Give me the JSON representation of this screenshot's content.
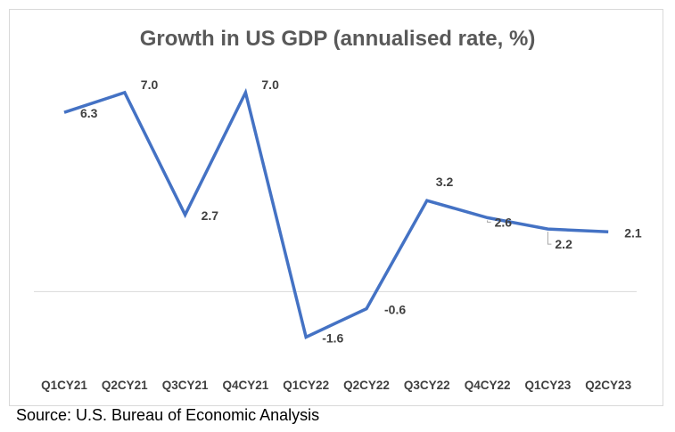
{
  "chart_data": {
    "type": "line",
    "title": "Growth in US GDP (annualised rate, %)",
    "categories": [
      "Q1CY21",
      "Q2CY21",
      "Q3CY21",
      "Q4CY21",
      "Q1CY22",
      "Q2CY22",
      "Q3CY22",
      "Q4CY22",
      "Q1CY23",
      "Q2CY23"
    ],
    "series": [
      {
        "values": [
          6.3,
          7.0,
          2.7,
          7.0,
          -1.6,
          -0.6,
          3.2,
          2.6,
          2.2,
          2.1
        ],
        "color": "#4472c4"
      }
    ],
    "data_labels": [
      "6.3",
      "7.0",
      "2.7",
      "7.0",
      "-1.6",
      "-0.6",
      "3.2",
      "2.6",
      "2.2",
      "2.1"
    ],
    "xlabel": "",
    "ylabel": "",
    "ylim": [
      -2.9,
      9.0
    ],
    "grid": false,
    "legend": "none",
    "zero_line": true
  },
  "source": "Source: U.S. Bureau of Economic Analysis"
}
